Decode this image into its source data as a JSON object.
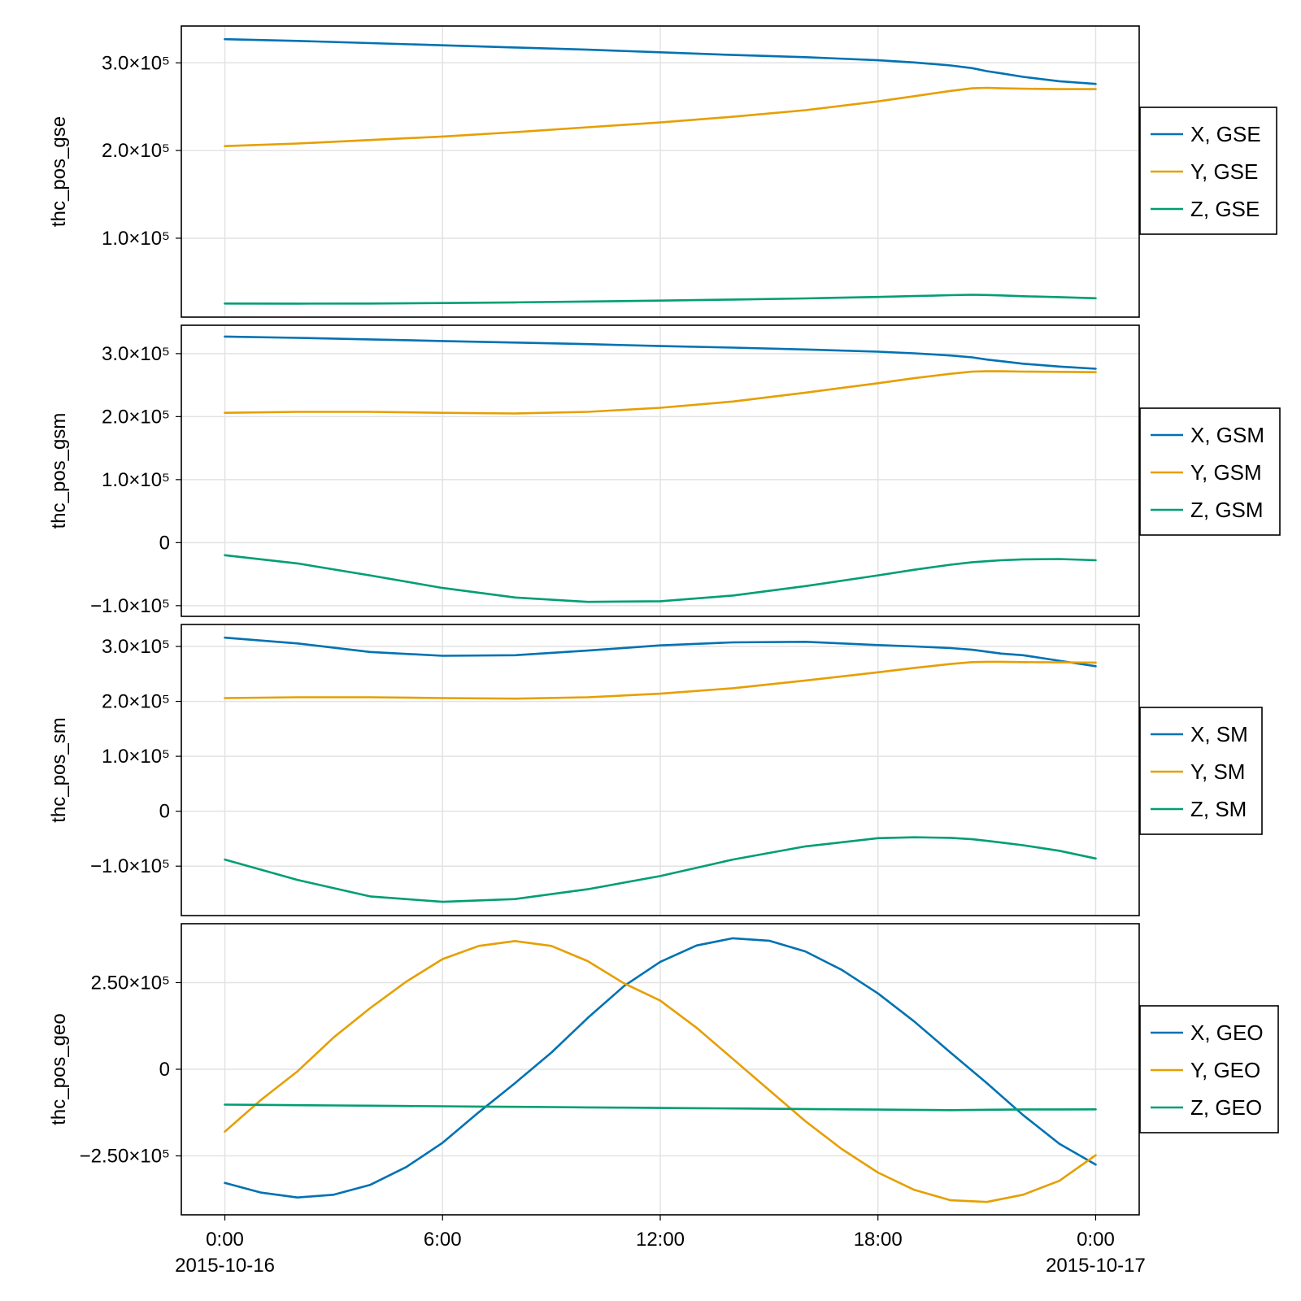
{
  "figure": {
    "title": ""
  },
  "colors": {
    "x": "#0072b2",
    "y": "#e69f00",
    "z": "#009e73",
    "grid": "#e3e3e3",
    "frame": "#000000"
  },
  "x_axis": {
    "ticks": [
      {
        "hour": 0,
        "label": "0:00",
        "date": "2015-10-16"
      },
      {
        "hour": 6,
        "label": "6:00",
        "date": ""
      },
      {
        "hour": 12,
        "label": "12:00",
        "date": ""
      },
      {
        "hour": 18,
        "label": "18:00",
        "date": ""
      },
      {
        "hour": 24,
        "label": "0:00",
        "date": "2015-10-17"
      }
    ]
  },
  "chart_data": [
    {
      "type": "line",
      "ylabel": "thc_pos_gse",
      "xlim": [
        -1.2,
        25.2
      ],
      "ylim": [
        10000,
        342000
      ],
      "yticks": [
        {
          "value": 100000,
          "label": "1.0×10⁵"
        },
        {
          "value": 200000,
          "label": "2.0×10⁵"
        },
        {
          "value": 300000,
          "label": "3.0×10⁵"
        }
      ],
      "x": [
        0,
        2,
        4,
        6,
        8,
        10,
        12,
        14,
        16,
        18,
        19,
        20,
        20.6,
        21,
        21.4,
        22,
        23,
        24
      ],
      "series": [
        {
          "name": "X, GSE",
          "color_key": "x",
          "values": [
            327000,
            325000,
            322500,
            320000,
            317500,
            315000,
            312000,
            309000,
            306500,
            303000,
            300500,
            297000,
            294000,
            290500,
            288000,
            284000,
            279000,
            276000
          ]
        },
        {
          "name": "Y, GSE",
          "color_key": "y",
          "values": [
            205000,
            208000,
            212000,
            216000,
            221000,
            226500,
            232000,
            238500,
            246000,
            256000,
            262000,
            268000,
            271000,
            271500,
            271000,
            270500,
            270000,
            270000
          ]
        },
        {
          "name": "Z, GSE",
          "color_key": "z",
          "values": [
            25500,
            25400,
            25500,
            26000,
            26800,
            27800,
            28800,
            30000,
            31300,
            33000,
            34000,
            35000,
            35500,
            35200,
            34800,
            33800,
            32800,
            31500
          ]
        }
      ]
    },
    {
      "type": "line",
      "ylabel": "thc_pos_gsm",
      "xlim": [
        -1.2,
        25.2
      ],
      "ylim": [
        -117000,
        345000
      ],
      "yticks": [
        {
          "value": -100000,
          "label": "−1.0×10⁵"
        },
        {
          "value": 0,
          "label": "0"
        },
        {
          "value": 100000,
          "label": "1.0×10⁵"
        },
        {
          "value": 200000,
          "label": "2.0×10⁵"
        },
        {
          "value": 300000,
          "label": "3.0×10⁵"
        }
      ],
      "x": [
        0,
        2,
        4,
        6,
        8,
        10,
        12,
        14,
        16,
        18,
        19,
        20,
        20.6,
        21,
        21.4,
        22,
        23,
        24
      ],
      "series": [
        {
          "name": "X, GSM",
          "color_key": "x",
          "values": [
            327000,
            325000,
            322500,
            320000,
            317500,
            315000,
            312000,
            309500,
            306500,
            303000,
            300500,
            297000,
            294000,
            290500,
            288000,
            284000,
            279500,
            276000
          ]
        },
        {
          "name": "Y, GSM",
          "color_key": "y",
          "values": [
            206000,
            207500,
            207500,
            206000,
            205000,
            207500,
            214000,
            224000,
            238000,
            253000,
            261000,
            268000,
            271500,
            272000,
            272000,
            271500,
            271000,
            270500
          ]
        },
        {
          "name": "Z, GSM",
          "color_key": "z",
          "values": [
            -20000,
            -33000,
            -52000,
            -72000,
            -87000,
            -94000,
            -93000,
            -84000,
            -69000,
            -52000,
            -43000,
            -35000,
            -31000,
            -29500,
            -28000,
            -26500,
            -26000,
            -28000
          ]
        }
      ]
    },
    {
      "type": "line",
      "ylabel": "thc_pos_sm",
      "xlim": [
        -1.2,
        25.2
      ],
      "ylim": [
        -190000,
        340000
      ],
      "yticks": [
        {
          "value": -100000,
          "label": "−1.0×10⁵"
        },
        {
          "value": 0,
          "label": "0"
        },
        {
          "value": 100000,
          "label": "1.0×10⁵"
        },
        {
          "value": 200000,
          "label": "2.0×10⁵"
        },
        {
          "value": 300000,
          "label": "3.0×10⁵"
        }
      ],
      "x": [
        0,
        2,
        4,
        6,
        8,
        10,
        12,
        14,
        16,
        18,
        19,
        20,
        20.6,
        21,
        21.4,
        22,
        23,
        24
      ],
      "series": [
        {
          "name": "X, SM",
          "color_key": "x",
          "values": [
            316000,
            305500,
            290000,
            283000,
            284000,
            292500,
            302000,
            307500,
            308500,
            302500,
            300000,
            297000,
            294000,
            290500,
            287000,
            284000,
            274000,
            264000
          ]
        },
        {
          "name": "Y, SM",
          "color_key": "y",
          "values": [
            206000,
            207500,
            207500,
            206000,
            205000,
            207500,
            214000,
            224000,
            238000,
            253000,
            261000,
            268000,
            271500,
            272000,
            272000,
            271500,
            271000,
            270500
          ]
        },
        {
          "name": "Z, SM",
          "color_key": "z",
          "values": [
            -88000,
            -125000,
            -155000,
            -165000,
            -160000,
            -142000,
            -118000,
            -88000,
            -64000,
            -49000,
            -47500,
            -48500,
            -51000,
            -54000,
            -57000,
            -62000,
            -72000,
            -86000
          ]
        }
      ]
    },
    {
      "type": "line",
      "ylabel": "thc_pos_geo",
      "xlim": [
        -1.2,
        25.2
      ],
      "ylim": [
        -420000,
        420000
      ],
      "yticks": [
        {
          "value": -250000,
          "label": "−2.50×10⁵"
        },
        {
          "value": 0,
          "label": "0"
        },
        {
          "value": 250000,
          "label": "2.50×10⁵"
        }
      ],
      "x": [
        0,
        1,
        2,
        3,
        4,
        5,
        6,
        7,
        8,
        9,
        10,
        11,
        12,
        13,
        14,
        15,
        16,
        17,
        18,
        19,
        20,
        21,
        22,
        23,
        24
      ],
      "series": [
        {
          "name": "X, GEO",
          "color_key": "x",
          "values": [
            -328000,
            -356000,
            -370000,
            -362000,
            -334000,
            -282000,
            -212000,
            -124000,
            -40000,
            48000,
            148000,
            240000,
            310000,
            357000,
            378000,
            371000,
            340000,
            287000,
            219000,
            138000,
            48000,
            -40000,
            -132000,
            -215000,
            -275000
          ]
        },
        {
          "name": "Y, GEO",
          "color_key": "y",
          "values": [
            -180000,
            -88000,
            -6000,
            92000,
            176000,
            253000,
            318000,
            356000,
            370000,
            356000,
            312000,
            248000,
            198000,
            120000,
            30000,
            -60000,
            -150000,
            -230000,
            -298000,
            -348000,
            -378000,
            -383000,
            -362000,
            -322000,
            -248000
          ]
        },
        {
          "name": "Z, GEO",
          "color_key": "z",
          "values": [
            -102000,
            -102800,
            -103600,
            -104400,
            -105200,
            -106000,
            -106800,
            -107600,
            -108400,
            -109200,
            -110000,
            -110800,
            -111600,
            -112400,
            -113200,
            -114000,
            -114800,
            -115600,
            -116400,
            -117200,
            -118000,
            -116800,
            -116000,
            -115800,
            -115600
          ]
        }
      ]
    }
  ]
}
